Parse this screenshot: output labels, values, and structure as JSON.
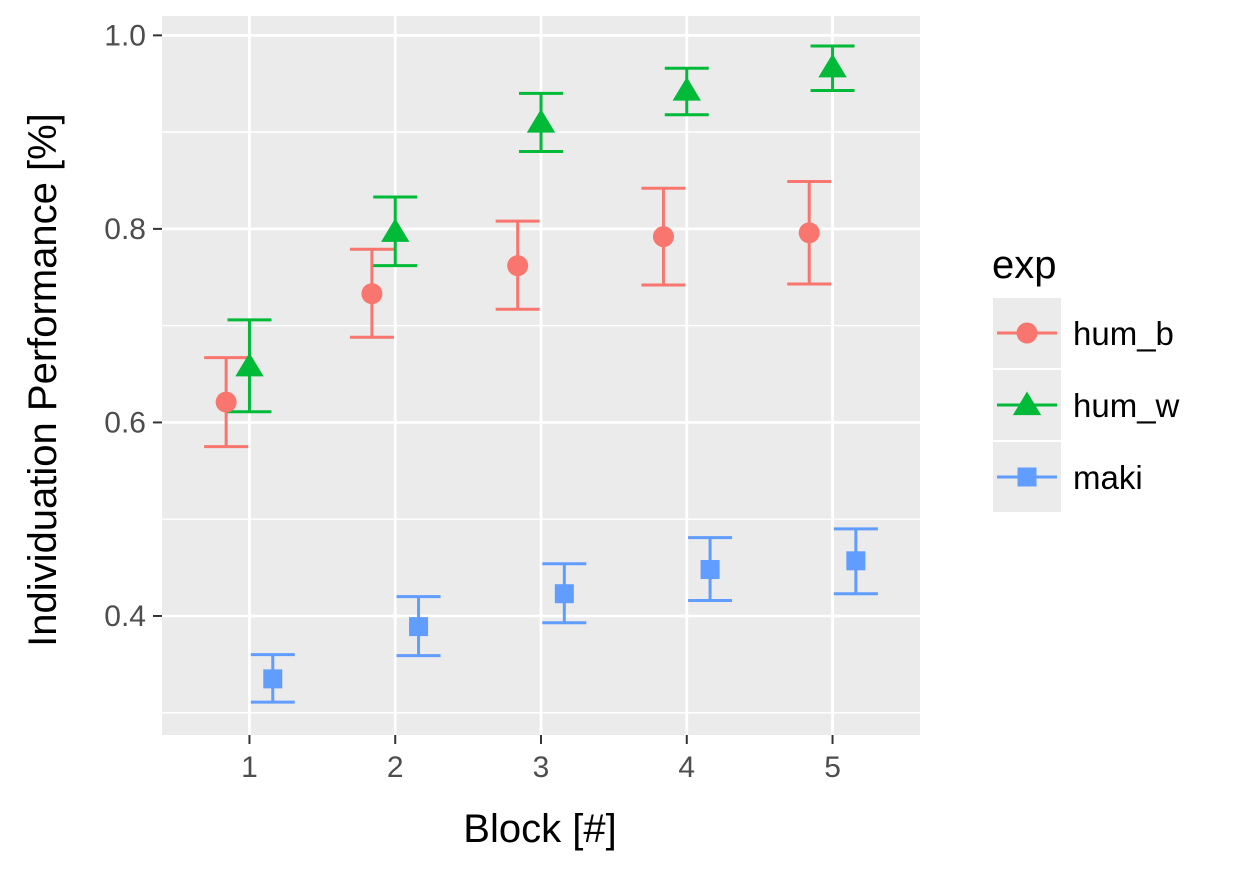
{
  "chart_data": {
    "type": "scatter",
    "xlabel": "Block [#]",
    "ylabel": "Individuation Performance [%]",
    "x": [
      1,
      2,
      3,
      4,
      5
    ],
    "xticks": [
      "1",
      "2",
      "3",
      "4",
      "5"
    ],
    "xlim": [
      0.4,
      5.6
    ],
    "ylim": [
      0.277,
      1.02
    ],
    "yticks": [
      "0.4",
      "0.6",
      "0.8",
      "1.0"
    ],
    "ytick_values": [
      0.4,
      0.6,
      0.8,
      1.0
    ],
    "grid": true,
    "legend": {
      "title": "exp",
      "position": "right"
    },
    "series": [
      {
        "name": "hum_b",
        "color": "#F8766D",
        "marker": "circle",
        "dodge": -0.16,
        "values": [
          0.621,
          0.733,
          0.762,
          0.792,
          0.796
        ],
        "lower": [
          0.575,
          0.688,
          0.717,
          0.742,
          0.743
        ],
        "upper": [
          0.667,
          0.779,
          0.808,
          0.842,
          0.849
        ]
      },
      {
        "name": "hum_w",
        "color": "#00BA38",
        "marker": "triangle",
        "dodge": 0,
        "values": [
          0.658,
          0.797,
          0.91,
          0.943,
          0.967
        ],
        "lower": [
          0.611,
          0.762,
          0.88,
          0.918,
          0.943
        ],
        "upper": [
          0.706,
          0.833,
          0.94,
          0.966,
          0.989
        ]
      },
      {
        "name": "maki",
        "color": "#619CFF",
        "marker": "square",
        "dodge": 0.16,
        "values": [
          0.335,
          0.389,
          0.423,
          0.448,
          0.457
        ],
        "lower": [
          0.311,
          0.359,
          0.393,
          0.416,
          0.423
        ],
        "upper": [
          0.36,
          0.42,
          0.454,
          0.481,
          0.49
        ]
      }
    ]
  }
}
